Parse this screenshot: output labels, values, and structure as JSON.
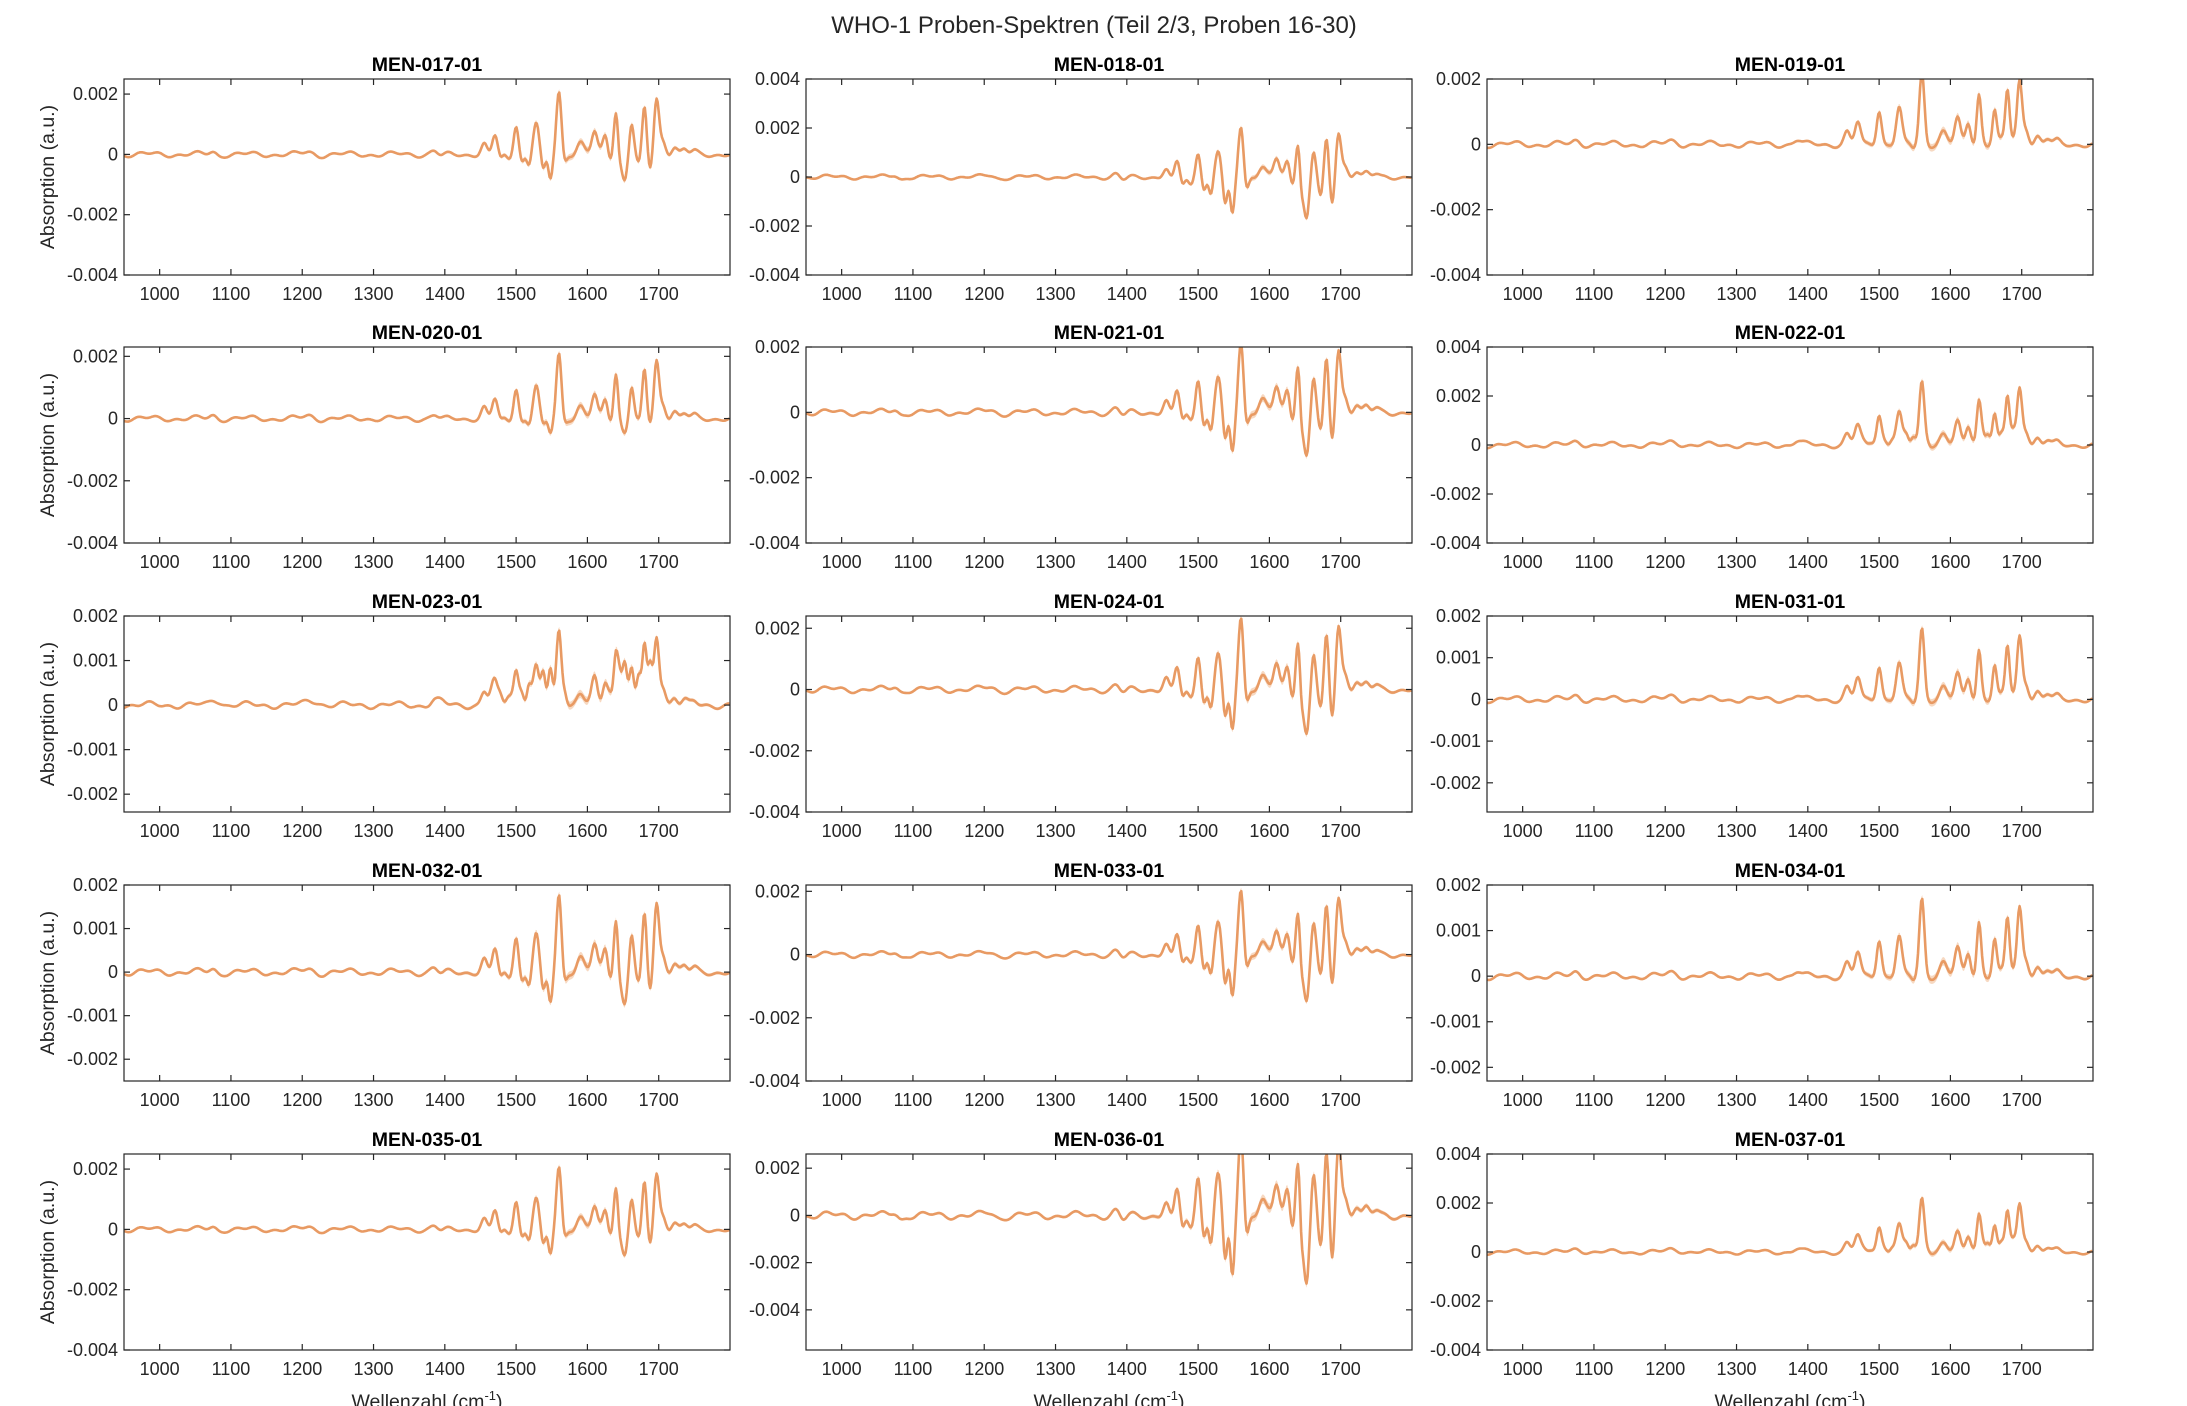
{
  "title": "WHO-1 Proben-Spektren (Teil 2/3, Proben 16-30)",
  "colors": {
    "line": "#E89A63",
    "band": "#F3C9A8",
    "axis": "#262626",
    "text": "#262626",
    "title": "#000000"
  },
  "chart_data": {
    "type": "line",
    "layout": "grid 5 rows x 3 columns",
    "xlabel": "Wellenzahl (cm-1)",
    "xlabel_main": "Wellenzahl (cm",
    "xlabel_sup": "-1",
    "xlabel_end": ")",
    "ylabel": "Absorption (a.u.)",
    "xlim": [
      950,
      1800
    ],
    "xticks": [
      1000,
      1100,
      1200,
      1300,
      1400,
      1500,
      1600,
      1700
    ],
    "peaks": [
      [
        1075,
        0.04,
        0.06,
        5
      ],
      [
        1083,
        -0.06,
        0.07,
        5
      ],
      [
        1210,
        0.04,
        0.05,
        7
      ],
      [
        1220,
        -0.05,
        0.05,
        7
      ],
      [
        1385,
        0.06,
        0.06,
        5
      ],
      [
        1395,
        -0.08,
        0.07,
        5
      ],
      [
        1455,
        0.15,
        0.18,
        4
      ],
      [
        1465,
        -0.15,
        0.14,
        4
      ],
      [
        1470,
        0.35,
        0.25,
        4
      ],
      [
        1478,
        -0.2,
        0.18,
        3
      ],
      [
        1490,
        -0.2,
        0.22,
        4
      ],
      [
        1500,
        0.5,
        0.45,
        3.5
      ],
      [
        1508,
        -0.3,
        0.3,
        3
      ],
      [
        1518,
        -0.45,
        0.45,
        3
      ],
      [
        1528,
        0.5,
        0.5,
        4
      ],
      [
        1538,
        -0.7,
        0.7,
        3
      ],
      [
        1548,
        -0.9,
        0.8,
        3
      ],
      [
        1560,
        1.0,
        1.0,
        3.5
      ],
      [
        1568,
        -0.3,
        0.3,
        3
      ],
      [
        1590,
        0.2,
        0.15,
        5
      ],
      [
        1610,
        0.35,
        0.35,
        4
      ],
      [
        1625,
        0.3,
        0.3,
        3.5
      ],
      [
        1632,
        -0.2,
        0.2,
        3
      ],
      [
        1640,
        0.7,
        0.7,
        3
      ],
      [
        1645,
        -0.4,
        0.5,
        2.5
      ],
      [
        1652,
        -1.0,
        1.0,
        3.5
      ],
      [
        1662,
        0.5,
        0.45,
        3
      ],
      [
        1672,
        -0.5,
        0.6,
        3
      ],
      [
        1680,
        0.7,
        0.8,
        3
      ],
      [
        1688,
        -0.7,
        0.8,
        3
      ],
      [
        1697,
        0.85,
        0.9,
        3.5
      ],
      [
        1706,
        0.2,
        0.25,
        4
      ],
      [
        1722,
        0.12,
        0.1,
        4
      ],
      [
        1736,
        0.08,
        0.06,
        4
      ],
      [
        1750,
        0.05,
        0.03,
        4
      ]
    ],
    "panels": [
      {
        "name": "MEN-017-01",
        "ylim": [
          -0.004,
          0.0025
        ],
        "yticks": [
          -0.004,
          -0.002,
          0,
          0.002
        ],
        "ytick_labels": [
          "-0.004",
          "-0.002",
          "0",
          "0.002"
        ],
        "scale": 0.0021,
        "mix": 0.3,
        "ylabel_shown": true,
        "xlabel_shown": false
      },
      {
        "name": "MEN-018-01",
        "ylim": [
          -0.004,
          0.004
        ],
        "yticks": [
          -0.004,
          -0.002,
          0,
          0.002,
          0.004
        ],
        "ytick_labels": [
          "-0.004",
          "-0.002",
          "0",
          "0.002",
          "0.004"
        ],
        "scale": 0.0021,
        "mix": 0.1,
        "ylabel_shown": false,
        "xlabel_shown": false
      },
      {
        "name": "MEN-019-01",
        "ylim": [
          -0.004,
          0.002
        ],
        "yticks": [
          -0.004,
          -0.002,
          0,
          0.002
        ],
        "ytick_labels": [
          "-0.004",
          "-0.002",
          "0",
          "0.002"
        ],
        "scale": 0.0022,
        "mix": 0.5,
        "ylabel_shown": false,
        "xlabel_shown": false
      },
      {
        "name": "MEN-020-01",
        "ylim": [
          -0.004,
          0.0023
        ],
        "yticks": [
          -0.004,
          -0.002,
          0,
          0.002
        ],
        "ytick_labels": [
          "-0.004",
          "-0.002",
          "0",
          "0.002"
        ],
        "scale": 0.0021,
        "mix": 0.4,
        "ylabel_shown": true,
        "xlabel_shown": false
      },
      {
        "name": "MEN-021-01",
        "ylim": [
          -0.004,
          0.002
        ],
        "yticks": [
          -0.004,
          -0.002,
          0,
          0.002
        ],
        "ytick_labels": [
          "-0.004",
          "-0.002",
          "0",
          "0.002"
        ],
        "scale": 0.0022,
        "mix": 0.2,
        "ylabel_shown": false,
        "xlabel_shown": false
      },
      {
        "name": "MEN-022-01",
        "ylim": [
          -0.004,
          0.004
        ],
        "yticks": [
          -0.004,
          -0.002,
          0,
          0.002,
          0.004
        ],
        "ytick_labels": [
          "-0.004",
          "-0.002",
          "0",
          "0.002",
          "0.004"
        ],
        "scale": 0.0026,
        "mix": 0.6,
        "ylabel_shown": false,
        "xlabel_shown": false
      },
      {
        "name": "MEN-023-01",
        "ylim": [
          -0.0024,
          0.002
        ],
        "yticks": [
          -0.002,
          -0.001,
          0,
          0.001,
          0.002
        ],
        "ytick_labels": [
          "-0.002",
          "-0.001",
          "0",
          "0.001",
          "0.002"
        ],
        "scale": 0.0017,
        "mix": 0.8,
        "ylabel_shown": true,
        "xlabel_shown": false
      },
      {
        "name": "MEN-024-01",
        "ylim": [
          -0.004,
          0.0024
        ],
        "yticks": [
          -0.004,
          -0.002,
          0,
          0.002
        ],
        "ytick_labels": [
          "-0.004",
          "-0.002",
          "0",
          "0.002"
        ],
        "scale": 0.0024,
        "mix": 0.2,
        "ylabel_shown": false,
        "xlabel_shown": false
      },
      {
        "name": "MEN-031-01",
        "ylim": [
          -0.0027,
          0.002
        ],
        "yticks": [
          -0.002,
          -0.001,
          0,
          0.001,
          0.002
        ],
        "ytick_labels": [
          "-0.002",
          "-0.001",
          "0",
          "0.001",
          "0.002"
        ],
        "scale": 0.0017,
        "mix": 0.5,
        "ylabel_shown": false,
        "xlabel_shown": false
      },
      {
        "name": "MEN-032-01",
        "ylim": [
          -0.0025,
          0.002
        ],
        "yticks": [
          -0.002,
          -0.001,
          0,
          0.001,
          0.002
        ],
        "ytick_labels": [
          "-0.002",
          "-0.001",
          "0",
          "0.001",
          "0.002"
        ],
        "scale": 0.0018,
        "mix": 0.3,
        "ylabel_shown": true,
        "xlabel_shown": false
      },
      {
        "name": "MEN-033-01",
        "ylim": [
          -0.004,
          0.0022
        ],
        "yticks": [
          -0.004,
          -0.002,
          0,
          0.002
        ],
        "ytick_labels": [
          "-0.004",
          "-0.002",
          "0",
          "0.002"
        ],
        "scale": 0.0021,
        "mix": 0.15,
        "ylabel_shown": false,
        "xlabel_shown": false
      },
      {
        "name": "MEN-034-01",
        "ylim": [
          -0.0023,
          0.002
        ],
        "yticks": [
          -0.002,
          -0.001,
          0,
          0.001,
          0.002
        ],
        "ytick_labels": [
          "-0.002",
          "-0.001",
          "0",
          "0.001",
          "0.002"
        ],
        "scale": 0.0017,
        "mix": 0.5,
        "ylabel_shown": false,
        "xlabel_shown": false
      },
      {
        "name": "MEN-035-01",
        "ylim": [
          -0.004,
          0.0025
        ],
        "yticks": [
          -0.004,
          -0.002,
          0,
          0.002
        ],
        "ytick_labels": [
          "-0.004",
          "-0.002",
          "0",
          "0.002"
        ],
        "scale": 0.0021,
        "mix": 0.3,
        "ylabel_shown": true,
        "xlabel_shown": true
      },
      {
        "name": "MEN-036-01",
        "ylim": [
          -0.0057,
          0.0026
        ],
        "yticks": [
          -0.004,
          -0.002,
          0,
          0.002
        ],
        "ytick_labels": [
          "-0.004",
          "-0.002",
          "0",
          "0.002"
        ],
        "scale": 0.0036,
        "mix": 0.1,
        "ylabel_shown": false,
        "xlabel_shown": true
      },
      {
        "name": "MEN-037-01",
        "ylim": [
          -0.004,
          0.004
        ],
        "yticks": [
          -0.004,
          -0.002,
          0,
          0.002,
          0.004
        ],
        "ytick_labels": [
          "-0.004",
          "-0.002",
          "0",
          "0.002",
          "0.004"
        ],
        "scale": 0.0022,
        "mix": 0.6,
        "ylabel_shown": false,
        "xlabel_shown": true
      }
    ]
  }
}
